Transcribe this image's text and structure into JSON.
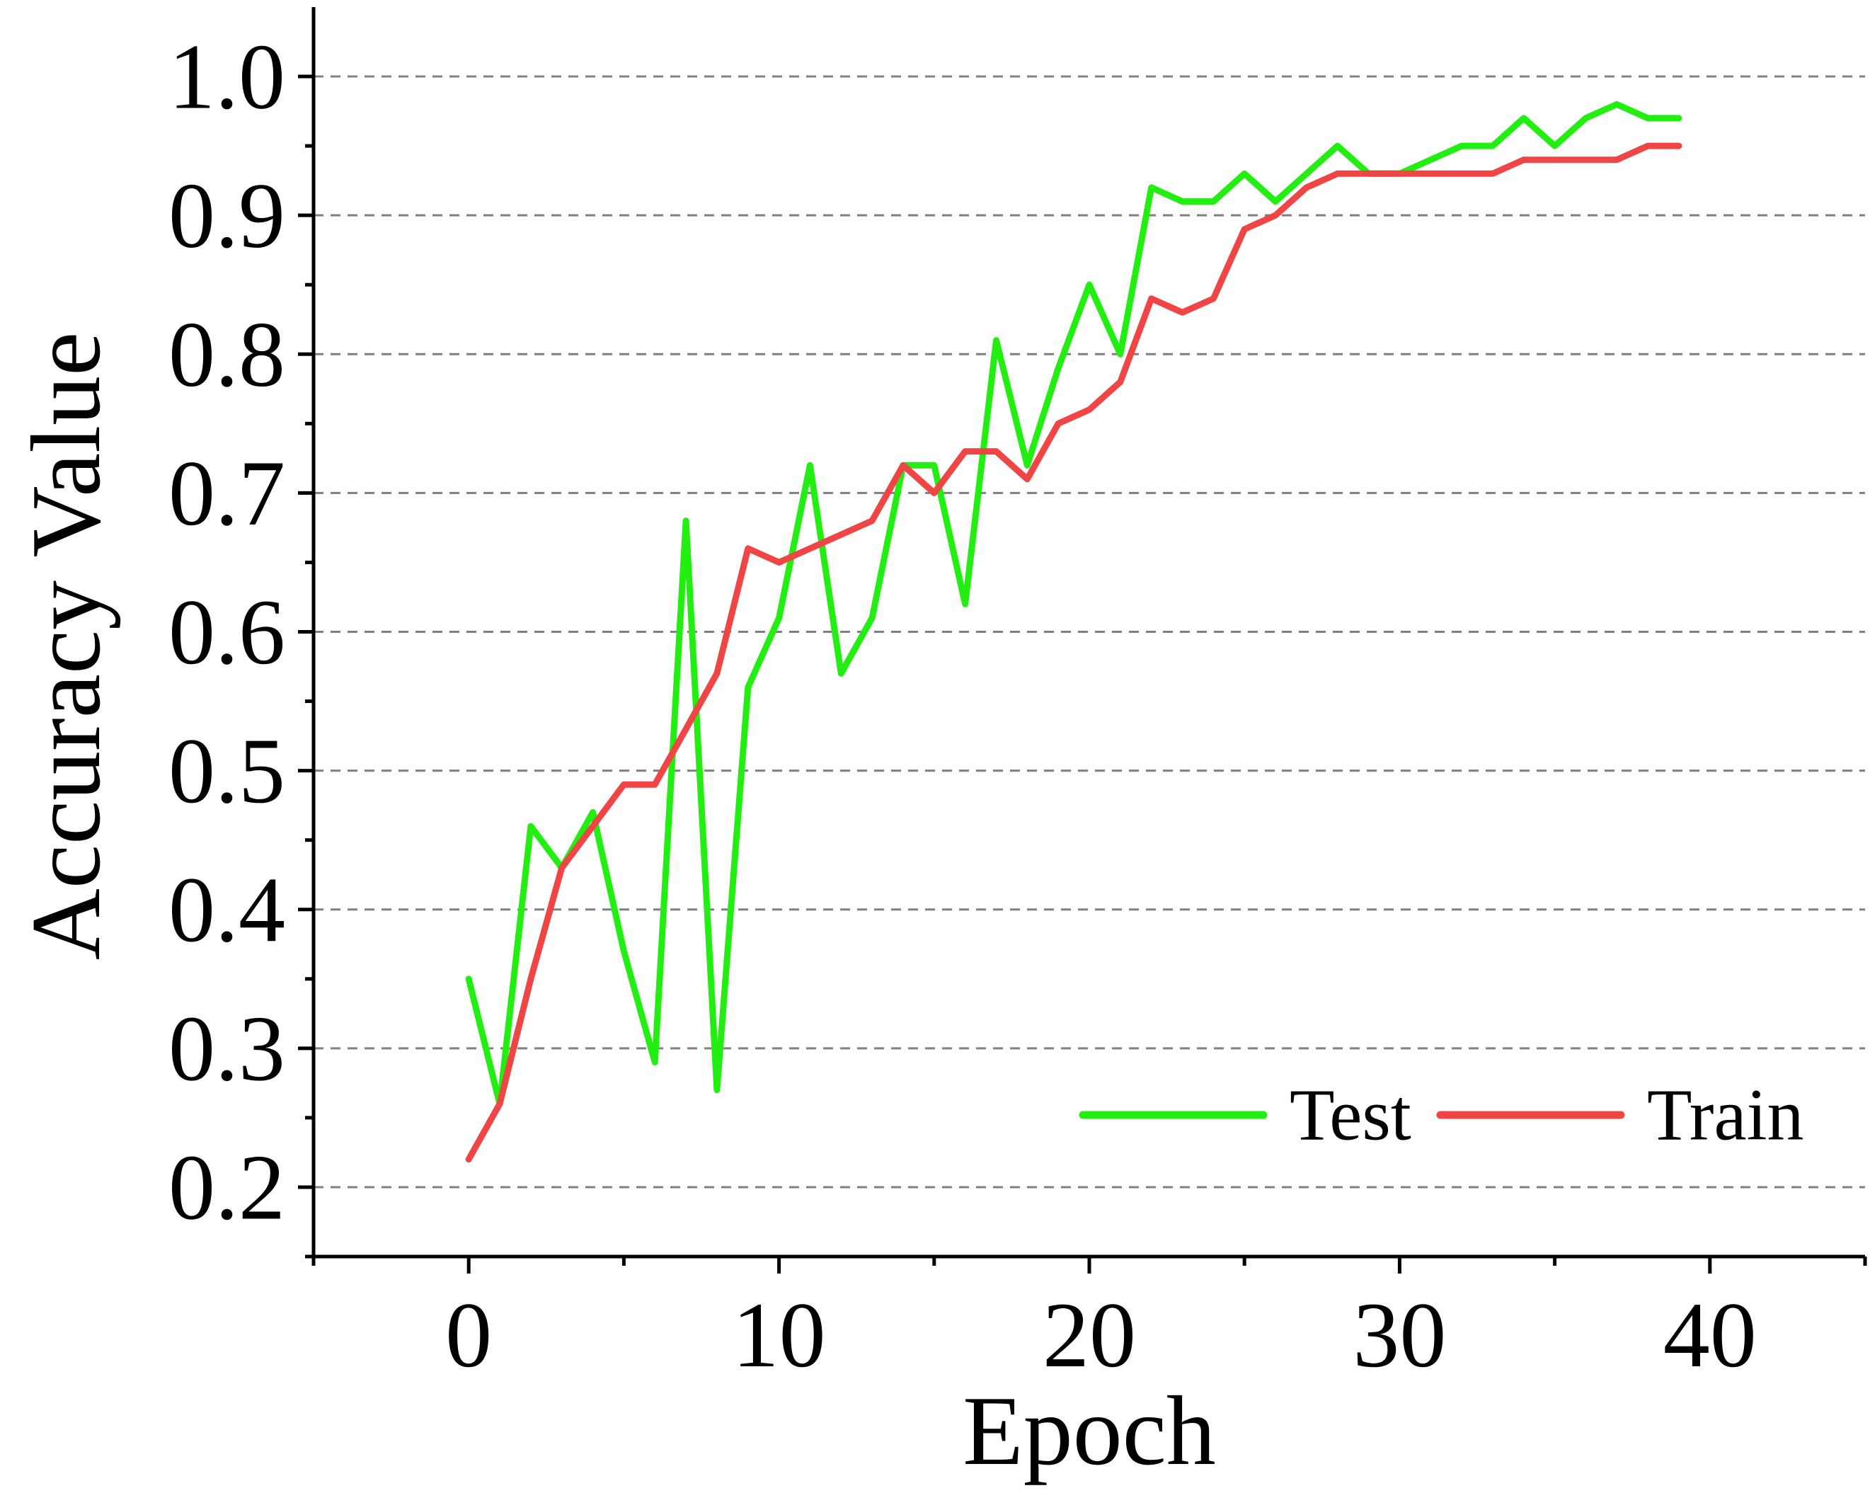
{
  "chart_data": {
    "type": "line",
    "xlabel": "Epoch",
    "ylabel": "Accuracy Value",
    "xlim": [
      -5,
      45
    ],
    "ylim": [
      0.15,
      1.05
    ],
    "x_ticks": [
      0,
      10,
      20,
      30,
      40
    ],
    "x_tick_labels": [
      "0",
      "10",
      "20",
      "30",
      "40"
    ],
    "y_ticks": [
      0.2,
      0.3,
      0.4,
      0.5,
      0.6,
      0.7,
      0.8,
      0.9,
      1.0
    ],
    "y_tick_labels": [
      "0.2",
      "0.3",
      "0.4",
      "0.5",
      "0.6",
      "0.7",
      "0.8",
      "0.9",
      "1.0"
    ],
    "grid": "horizontal dashed",
    "legend_position": "bottom-right",
    "x": [
      0,
      1,
      2,
      3,
      4,
      5,
      6,
      7,
      8,
      9,
      10,
      11,
      12,
      13,
      14,
      15,
      16,
      17,
      18,
      19,
      20,
      21,
      22,
      23,
      24,
      25,
      26,
      27,
      28,
      29,
      30,
      31,
      32,
      33,
      34,
      35,
      36,
      37,
      38,
      39
    ],
    "series": [
      {
        "name": "Test",
        "color": "#22ee11",
        "values": [
          0.35,
          0.26,
          0.46,
          0.43,
          0.47,
          0.37,
          0.29,
          0.68,
          0.27,
          0.56,
          0.61,
          0.72,
          0.57,
          0.61,
          0.72,
          0.72,
          0.62,
          0.81,
          0.72,
          0.79,
          0.85,
          0.8,
          0.92,
          0.91,
          0.91,
          0.93,
          0.91,
          0.93,
          0.95,
          0.93,
          0.93,
          0.94,
          0.95,
          0.95,
          0.97,
          0.95,
          0.97,
          0.98,
          0.97,
          0.97
        ]
      },
      {
        "name": "Train",
        "color": "#f04545",
        "values": [
          0.22,
          0.26,
          0.35,
          0.43,
          0.46,
          0.49,
          0.49,
          0.53,
          0.57,
          0.66,
          0.65,
          0.66,
          0.67,
          0.68,
          0.72,
          0.7,
          0.73,
          0.73,
          0.71,
          0.75,
          0.76,
          0.78,
          0.84,
          0.83,
          0.84,
          0.89,
          0.9,
          0.92,
          0.93,
          0.93,
          0.93,
          0.93,
          0.93,
          0.93,
          0.94,
          0.94,
          0.94,
          0.94,
          0.95,
          0.95
        ]
      }
    ]
  }
}
